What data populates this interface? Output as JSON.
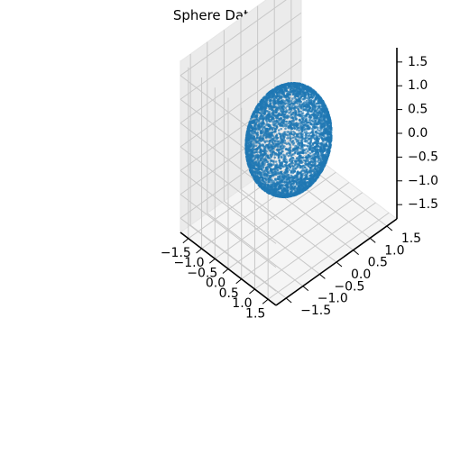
{
  "chart_data": {
    "type": "scatter",
    "projection": "3d",
    "title": "Sphere Dataset",
    "xlabel": "",
    "ylabel": "",
    "zlabel": "",
    "grid": true,
    "marker_color": "#1f77b4",
    "pane_color": "#f2f2f2",
    "xlim": [
      -1.8,
      1.8
    ],
    "ylim": [
      -1.8,
      1.8
    ],
    "zlim": [
      -1.8,
      1.8
    ],
    "x_ticks": [
      "−1.5",
      "−1.0",
      "−0.5",
      "0.0",
      "0.5",
      "1.0",
      "1.5"
    ],
    "y_ticks": [
      "−1.5",
      "−1.0",
      "−0.5",
      "0.0",
      "0.5",
      "1.0",
      "1.5"
    ],
    "z_ticks": [
      "−1.5",
      "−1.0",
      "−0.5",
      "0.0",
      "0.5",
      "1.0",
      "1.5"
    ],
    "series": [
      {
        "shape": "sphere surface",
        "center": [
          0,
          0,
          0
        ],
        "radius": 1.0,
        "points": 5000
      }
    ]
  }
}
